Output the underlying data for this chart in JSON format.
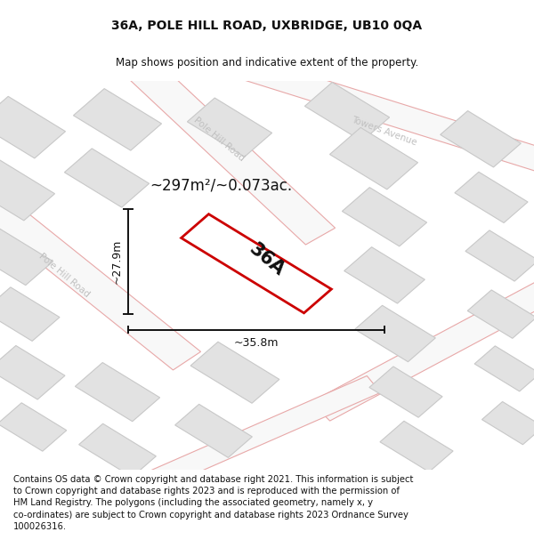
{
  "title": "36A, POLE HILL ROAD, UXBRIDGE, UB10 0QA",
  "subtitle": "Map shows position and indicative extent of the property.",
  "footer": "Contains OS data © Crown copyright and database right 2021. This information is subject\nto Crown copyright and database rights 2023 and is reproduced with the permission of\nHM Land Registry. The polygons (including the associated geometry, namely x, y\nco-ordinates) are subject to Crown copyright and database rights 2023 Ordnance Survey\n100026316.",
  "area_label": "~297m²/~0.073ac.",
  "property_label": "36A",
  "width_label": "~35.8m",
  "height_label": "~27.9m",
  "map_bg": "#f0f0f0",
  "road_color": "#e8a8a8",
  "building_color": "#e2e2e2",
  "building_edge": "#c8c8c8",
  "property_fill": "#ffffff",
  "property_edge": "#cc0000",
  "road_label_color": "#c0c0c0",
  "title_fontsize": 10,
  "subtitle_fontsize": 8.5,
  "footer_fontsize": 7.2,
  "area_fontsize": 12,
  "label_fontsize": 9,
  "property_fontsize": 15
}
